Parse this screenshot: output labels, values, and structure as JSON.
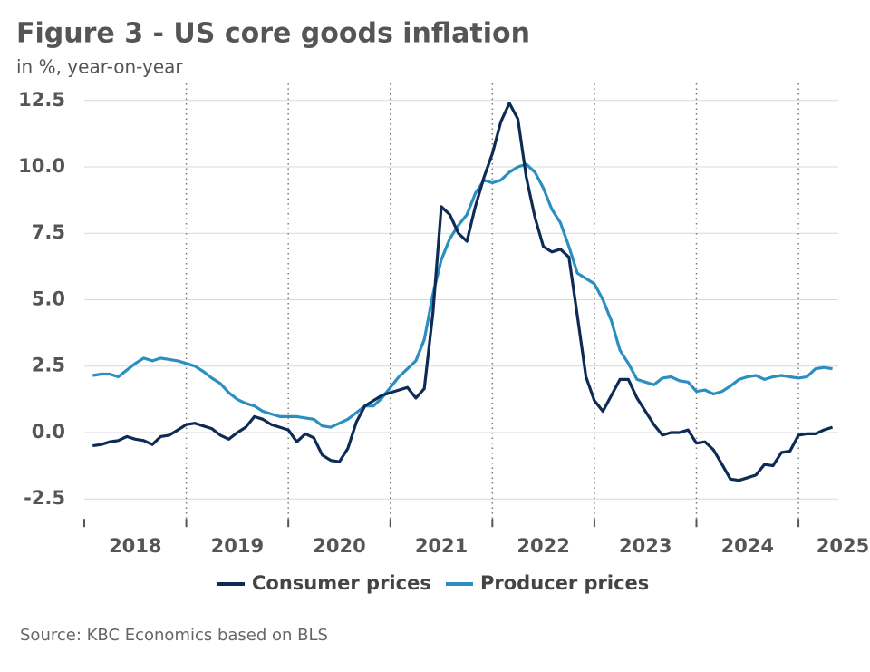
{
  "chart_data": {
    "type": "line",
    "title": "Figure 3 - US core goods inflation",
    "subtitle": "in %, year-on-year",
    "source": "Source: KBC Economics based on BLS",
    "x": [
      2018.083,
      2018.167,
      2018.25,
      2018.333,
      2018.417,
      2018.5,
      2018.583,
      2018.667,
      2018.75,
      2018.833,
      2018.917,
      2019.0,
      2019.083,
      2019.167,
      2019.25,
      2019.333,
      2019.417,
      2019.5,
      2019.583,
      2019.667,
      2019.75,
      2019.833,
      2019.917,
      2020.0,
      2020.083,
      2020.167,
      2020.25,
      2020.333,
      2020.417,
      2020.5,
      2020.583,
      2020.667,
      2020.75,
      2020.833,
      2020.917,
      2021.0,
      2021.083,
      2021.167,
      2021.25,
      2021.333,
      2021.417,
      2021.5,
      2021.583,
      2021.667,
      2021.75,
      2021.833,
      2021.917,
      2022.0,
      2022.083,
      2022.167,
      2022.25,
      2022.333,
      2022.417,
      2022.5,
      2022.583,
      2022.667,
      2022.75,
      2022.833,
      2022.917,
      2023.0,
      2023.083,
      2023.167,
      2023.25,
      2023.333,
      2023.417,
      2023.5,
      2023.583,
      2023.667,
      2023.75,
      2023.833,
      2023.917,
      2024.0,
      2024.083,
      2024.167,
      2024.25,
      2024.333,
      2024.417,
      2024.5,
      2024.583,
      2024.667,
      2024.75,
      2024.833,
      2024.917,
      2025.0,
      2025.083,
      2025.167,
      2025.25,
      2025.333
    ],
    "series": [
      {
        "name": "Consumer prices",
        "color": "#0d2b55",
        "values": [
          -0.5,
          -0.45,
          -0.35,
          -0.3,
          -0.15,
          -0.25,
          -0.3,
          -0.45,
          -0.15,
          -0.1,
          0.1,
          0.3,
          0.35,
          0.25,
          0.15,
          -0.1,
          -0.25,
          0.0,
          0.2,
          0.6,
          0.5,
          0.3,
          0.2,
          0.1,
          -0.35,
          -0.05,
          -0.2,
          -0.85,
          -1.05,
          -1.1,
          -0.6,
          0.4,
          1.0,
          1.2,
          1.4,
          1.5,
          1.6,
          1.7,
          1.3,
          1.65,
          4.5,
          8.5,
          8.2,
          7.5,
          7.2,
          8.5,
          9.6,
          10.5,
          11.7,
          12.4,
          11.8,
          9.6,
          8.1,
          7.0,
          6.8,
          6.9,
          6.6,
          4.4,
          2.1,
          1.2,
          0.8,
          1.4,
          2.0,
          2.0,
          1.3,
          0.8,
          0.3,
          -0.1,
          0.0,
          0.0,
          0.1,
          -0.4,
          -0.35,
          -0.65,
          -1.2,
          -1.75,
          -1.8,
          -1.7,
          -1.6,
          -1.2,
          -1.25,
          -0.75,
          -0.7,
          -0.1,
          -0.05,
          -0.05,
          0.1,
          0.2
        ]
      },
      {
        "name": "Producer prices",
        "color": "#2a8fc0",
        "values": [
          2.15,
          2.2,
          2.2,
          2.1,
          2.35,
          2.6,
          2.8,
          2.7,
          2.8,
          2.75,
          2.7,
          2.6,
          2.5,
          2.3,
          2.05,
          1.85,
          1.5,
          1.25,
          1.1,
          1.0,
          0.8,
          0.7,
          0.6,
          0.6,
          0.6,
          0.55,
          0.5,
          0.25,
          0.2,
          0.35,
          0.5,
          0.75,
          1.0,
          1.0,
          1.3,
          1.7,
          2.1,
          2.4,
          2.7,
          3.5,
          5.2,
          6.5,
          7.3,
          7.8,
          8.2,
          9.0,
          9.5,
          9.4,
          9.5,
          9.8,
          10.0,
          10.1,
          9.8,
          9.2,
          8.4,
          7.9,
          7.0,
          6.0,
          5.8,
          5.6,
          5.0,
          4.2,
          3.1,
          2.6,
          2.0,
          1.9,
          1.8,
          2.05,
          2.1,
          1.95,
          1.9,
          1.55,
          1.6,
          1.45,
          1.55,
          1.75,
          2.0,
          2.1,
          2.15,
          2.0,
          2.1,
          2.15,
          2.1,
          2.05,
          2.1,
          2.4,
          2.45,
          2.4
        ]
      }
    ],
    "xlim": [
      2018,
      2025.39
    ],
    "xticks": [
      2018,
      2019,
      2020,
      2021,
      2022,
      2023,
      2024,
      2025
    ],
    "ylim": [
      -3.25,
      12.85
    ],
    "yticks": [
      {
        "value": 12.5,
        "label": "12.5"
      },
      {
        "value": 10,
        "label": "10.0"
      },
      {
        "value": 7.5,
        "label": "7.5"
      },
      {
        "value": 5,
        "label": "5.0"
      },
      {
        "value": 2.5,
        "label": "2.5"
      },
      {
        "value": 0,
        "label": "0.0"
      },
      {
        "value": -2.5,
        "label": "-2.5"
      }
    ],
    "grid": true,
    "legend": "bottom"
  }
}
